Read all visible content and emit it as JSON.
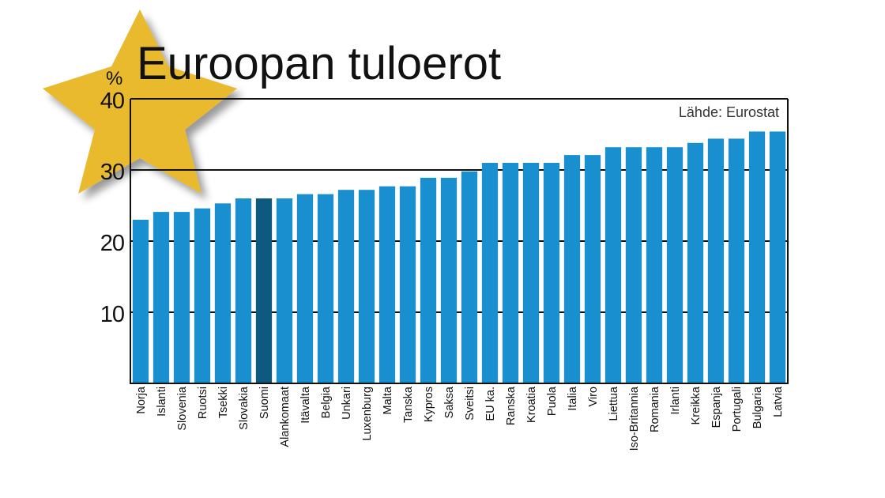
{
  "chart_data": {
    "type": "bar",
    "title": "Euroopan tuloerot",
    "unit_label": "%",
    "source": "Lähde: Eurostat",
    "ylim": [
      0,
      40
    ],
    "yticks": [
      10,
      20,
      30,
      40
    ],
    "grid": "horizontal",
    "categories": [
      "Norja",
      "Islanti",
      "Slovenia",
      "Ruotsi",
      "Tsekki",
      "Slovakia",
      "Suomi",
      "Alankomaat",
      "Itävalta",
      "Belgia",
      "Unkari",
      "Luxenburg",
      "Malta",
      "Tanska",
      "Kypros",
      "Saksa",
      "Sveitsi",
      "EU ka.",
      "Ranska",
      "Kroatia",
      "Puola",
      "Italia",
      "Viro",
      "Liettua",
      "Iso-Britannia",
      "Romania",
      "Irlanti",
      "Kreikka",
      "Espanja",
      "Portugali",
      "Bulgaria",
      "Latvia"
    ],
    "values": [
      23.0,
      24.1,
      24.1,
      24.6,
      25.3,
      26.0,
      26.0,
      26.0,
      26.6,
      26.6,
      27.2,
      27.2,
      27.7,
      27.7,
      28.9,
      28.9,
      29.8,
      31.0,
      31.0,
      31.0,
      31.0,
      32.1,
      32.1,
      33.2,
      33.2,
      33.2,
      33.2,
      33.8,
      34.4,
      34.4,
      35.4,
      35.4
    ],
    "highlight": "Suomi",
    "colors": {
      "bar": "#1a8fd0",
      "highlight": "#0e5a7e",
      "star": "#e9b92e"
    }
  }
}
